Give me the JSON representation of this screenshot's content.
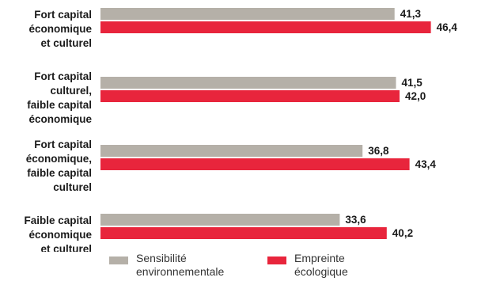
{
  "colors": {
    "series1": "#b5b0a8",
    "series2": "#e8253c",
    "text": "#1a1a1a"
  },
  "chart_data": {
    "type": "bar",
    "orientation": "horizontal",
    "categories": [
      "Fort capital\néconomique\net culturel",
      "Fort capital\nculturel,\nfaible capital\néconomique",
      "Fort capital\néconomique,\nfaible capital\nculturel",
      "Faible capital\néconomique\net culturel"
    ],
    "series": [
      {
        "name": "Sensibilité\nenvironnementale",
        "values": [
          41.3,
          41.5,
          36.8,
          33.6
        ],
        "labels": [
          "41,3",
          "41,5",
          "36,8",
          "33,6"
        ]
      },
      {
        "name": "Empreinte\nécologique",
        "values": [
          46.4,
          42.0,
          43.4,
          40.2
        ],
        "labels": [
          "46,4",
          "42,0",
          "43,4",
          "40,2"
        ]
      }
    ],
    "xlim": [
      0,
      50
    ],
    "grid": false,
    "legend_position": "bottom"
  }
}
